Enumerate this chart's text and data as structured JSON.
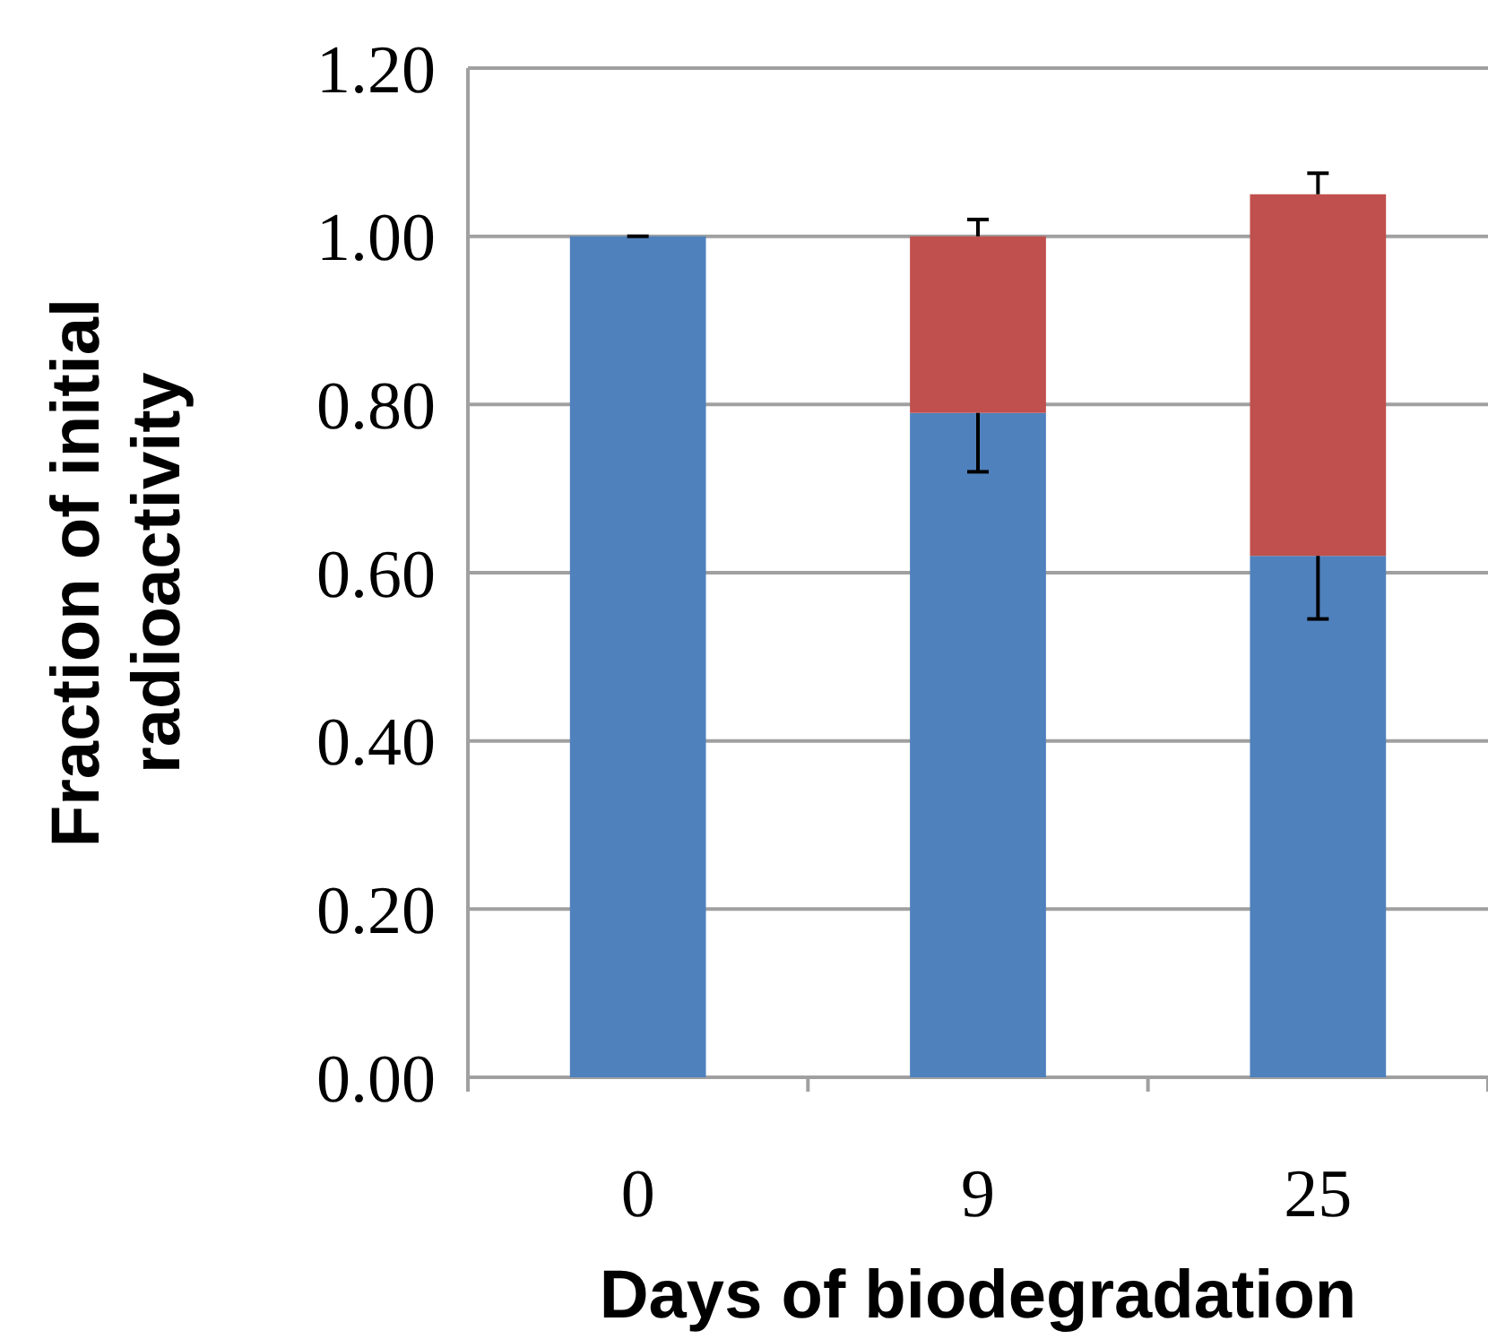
{
  "chart_data": {
    "type": "bar",
    "stacked": true,
    "xlabel": "Days of biodegradation",
    "ylabel": "Fraction of initial radioactivity",
    "categories": [
      "0",
      "9",
      "25"
    ],
    "series": [
      {
        "color": "#4f81bd",
        "values": [
          1.0,
          0.79,
          0.62
        ],
        "errors": [
          0,
          [
            0.72,
            0.79
          ],
          [
            0.545,
            0.62
          ]
        ]
      },
      {
        "color": "#c0504d",
        "values": [
          0,
          0.21,
          0.43
        ],
        "errors": [
          null,
          [
            1.0,
            1.02
          ],
          [
            1.05,
            1.075
          ]
        ]
      }
    ],
    "ylim": [
      0,
      1.2
    ],
    "yticks": [
      {
        "value": 0,
        "label": "0.00"
      },
      {
        "value": 0.2,
        "label": "0.20"
      },
      {
        "value": 0.4,
        "label": "0.40"
      },
      {
        "value": 0.6,
        "label": "0.60"
      },
      {
        "value": 0.8,
        "label": "0.80"
      },
      {
        "value": 1.0,
        "label": "1.00"
      },
      {
        "value": 1.2,
        "label": "1.20"
      }
    ],
    "grid": "y"
  }
}
